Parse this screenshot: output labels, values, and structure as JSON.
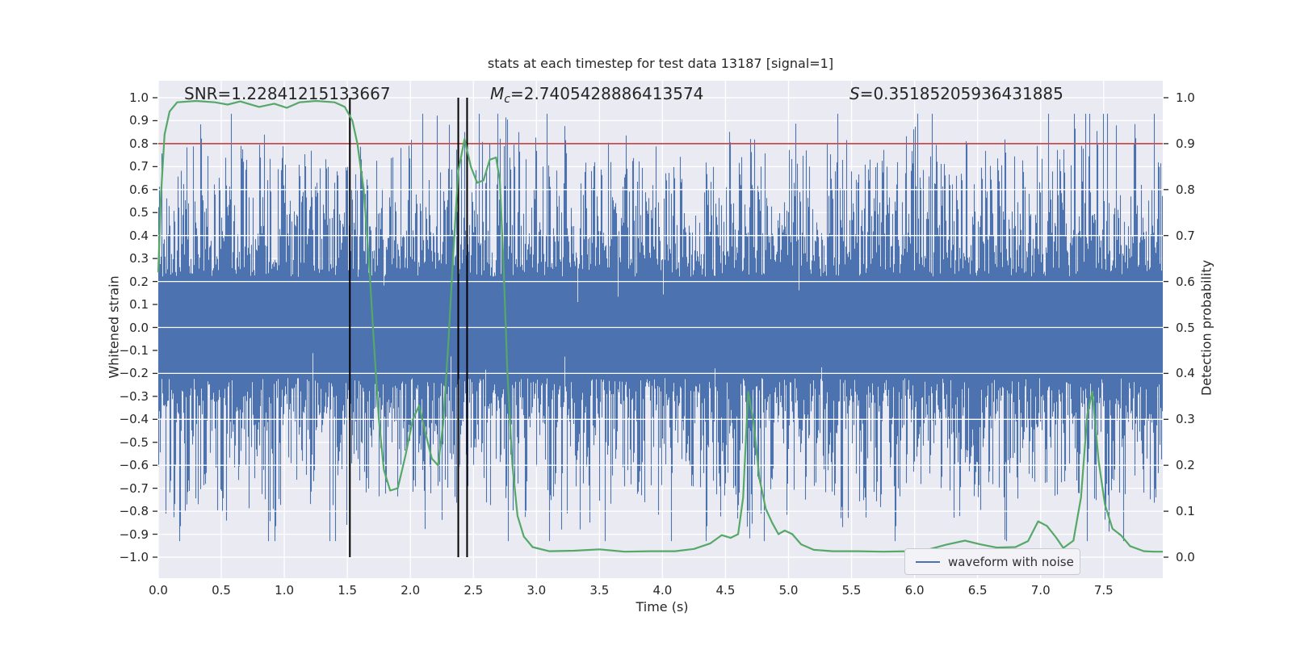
{
  "title": "stats at each timestep for test data 13187 [signal=1]",
  "annotations": {
    "snr": "SNR=1.22841215133667",
    "mc_symbol": "M",
    "mc_subscript": "c",
    "mc_rest": "=2.7405428886413574",
    "s_symbol": "S",
    "s_rest": "=0.35185205936431885"
  },
  "axes": {
    "xlabel": "Time (s)",
    "ylabel_left": "Whitened strain",
    "ylabel_right": "Detection probability",
    "x_tick_values": [
      0.0,
      0.5,
      1.0,
      1.5,
      2.0,
      2.5,
      3.0,
      3.5,
      4.0,
      4.5,
      5.0,
      5.5,
      6.0,
      6.5,
      7.0,
      7.5
    ],
    "x_tick_labels": [
      "0.0",
      "0.5",
      "1.0",
      "1.5",
      "2.0",
      "2.5",
      "3.0",
      "3.5",
      "4.0",
      "4.5",
      "5.0",
      "5.5",
      "6.0",
      "6.5",
      "7.0",
      "7.5"
    ],
    "yl_tick_values": [
      1.0,
      0.9,
      0.8,
      0.7,
      0.6,
      0.5,
      0.4,
      0.3,
      0.2,
      0.1,
      0.0,
      -0.1,
      -0.2,
      -0.3,
      -0.4,
      -0.5,
      -0.6,
      -0.7,
      -0.8,
      -0.9,
      -1.0
    ],
    "yl_tick_labels": [
      "1.0",
      "0.9",
      "0.8",
      "0.7",
      "0.6",
      "0.5",
      "0.4",
      "0.3",
      "0.2",
      "0.1",
      "0.0",
      "−0.1",
      "−0.2",
      "−0.3",
      "−0.4",
      "−0.5",
      "−0.6",
      "−0.7",
      "−0.8",
      "−0.9",
      "−1.0"
    ],
    "yr_tick_values": [
      1.0,
      0.9,
      0.8,
      0.7,
      0.6,
      0.5,
      0.4,
      0.3,
      0.2,
      0.1,
      0.0
    ],
    "yr_tick_labels": [
      "1.0",
      "0.9",
      "0.8",
      "0.7",
      "0.6",
      "0.5",
      "0.4",
      "0.3",
      "0.2",
      "0.1",
      "0.0"
    ]
  },
  "legend": {
    "label": "waveform with noise"
  },
  "colors": {
    "plot_bg": "#eaeaf2",
    "grid": "#ffffff",
    "waveform": "#4c72b0",
    "detection": "#55a868",
    "threshold": "#c44e52",
    "event_line": "#000000",
    "text": "#262626"
  },
  "chart_data": {
    "type": "line",
    "title": "stats at each timestep for test data 13187 [signal=1]",
    "xlabel": "Time (s)",
    "ylabel_left": "Whitened strain",
    "ylabel_right": "Detection probability",
    "xlim": [
      0.0,
      7.97
    ],
    "ylim_left": [
      -1.08,
      1.08
    ],
    "ylim_right": [
      -0.04,
      1.04
    ],
    "grid": "both axes, white gridlines (darkgrid style); right-axis grid drawn above waveform",
    "legend_loc": "lower right inset",
    "threshold_line": {
      "axis": "right",
      "value": 0.9
    },
    "event_vlines": {
      "x": [
        1.52,
        2.38,
        2.45
      ],
      "span_right_axis": [
        0.0,
        1.0
      ]
    },
    "series": [
      {
        "name": "waveform with noise",
        "axis": "left",
        "kind": "dense noise waveform (whitened strain), appears as solid band",
        "solid_core_halfwidth": 0.22,
        "typical_peak": 0.45,
        "max_peak": 0.93,
        "x_range": [
          0.0,
          7.97
        ]
      },
      {
        "name": "detection probability",
        "axis": "right",
        "kind": "polyline",
        "points": [
          [
            0.0,
            0.62
          ],
          [
            0.02,
            0.78
          ],
          [
            0.05,
            0.92
          ],
          [
            0.09,
            0.97
          ],
          [
            0.15,
            0.99
          ],
          [
            0.3,
            0.993
          ],
          [
            0.45,
            0.99
          ],
          [
            0.55,
            0.985
          ],
          [
            0.65,
            0.992
          ],
          [
            0.8,
            0.98
          ],
          [
            0.92,
            0.987
          ],
          [
            1.02,
            0.978
          ],
          [
            1.12,
            0.99
          ],
          [
            1.25,
            0.993
          ],
          [
            1.4,
            0.99
          ],
          [
            1.48,
            0.98
          ],
          [
            1.54,
            0.95
          ],
          [
            1.58,
            0.9
          ],
          [
            1.63,
            0.8
          ],
          [
            1.67,
            0.65
          ],
          [
            1.71,
            0.47
          ],
          [
            1.75,
            0.3
          ],
          [
            1.79,
            0.19
          ],
          [
            1.84,
            0.145
          ],
          [
            1.9,
            0.15
          ],
          [
            1.96,
            0.22
          ],
          [
            2.02,
            0.3
          ],
          [
            2.07,
            0.33
          ],
          [
            2.12,
            0.27
          ],
          [
            2.17,
            0.215
          ],
          [
            2.22,
            0.2
          ],
          [
            2.26,
            0.29
          ],
          [
            2.3,
            0.46
          ],
          [
            2.34,
            0.66
          ],
          [
            2.38,
            0.84
          ],
          [
            2.43,
            0.91
          ],
          [
            2.48,
            0.85
          ],
          [
            2.53,
            0.815
          ],
          [
            2.58,
            0.82
          ],
          [
            2.63,
            0.865
          ],
          [
            2.68,
            0.87
          ],
          [
            2.71,
            0.82
          ],
          [
            2.74,
            0.63
          ],
          [
            2.77,
            0.4
          ],
          [
            2.81,
            0.2
          ],
          [
            2.85,
            0.09
          ],
          [
            2.9,
            0.045
          ],
          [
            2.97,
            0.022
          ],
          [
            3.1,
            0.013
          ],
          [
            3.3,
            0.014
          ],
          [
            3.5,
            0.017
          ],
          [
            3.7,
            0.012
          ],
          [
            3.9,
            0.013
          ],
          [
            4.1,
            0.013
          ],
          [
            4.25,
            0.018
          ],
          [
            4.38,
            0.03
          ],
          [
            4.47,
            0.048
          ],
          [
            4.54,
            0.042
          ],
          [
            4.6,
            0.05
          ],
          [
            4.64,
            0.13
          ],
          [
            4.68,
            0.36
          ],
          [
            4.72,
            0.3
          ],
          [
            4.77,
            0.17
          ],
          [
            4.82,
            0.105
          ],
          [
            4.87,
            0.075
          ],
          [
            4.92,
            0.05
          ],
          [
            4.97,
            0.058
          ],
          [
            5.03,
            0.05
          ],
          [
            5.1,
            0.028
          ],
          [
            5.2,
            0.016
          ],
          [
            5.35,
            0.013
          ],
          [
            5.55,
            0.013
          ],
          [
            5.75,
            0.012
          ],
          [
            5.95,
            0.013
          ],
          [
            6.1,
            0.016
          ],
          [
            6.25,
            0.027
          ],
          [
            6.4,
            0.036
          ],
          [
            6.52,
            0.028
          ],
          [
            6.65,
            0.021
          ],
          [
            6.8,
            0.022
          ],
          [
            6.9,
            0.035
          ],
          [
            6.98,
            0.078
          ],
          [
            7.05,
            0.068
          ],
          [
            7.12,
            0.044
          ],
          [
            7.18,
            0.02
          ],
          [
            7.26,
            0.036
          ],
          [
            7.32,
            0.13
          ],
          [
            7.37,
            0.31
          ],
          [
            7.41,
            0.36
          ],
          [
            7.46,
            0.21
          ],
          [
            7.51,
            0.115
          ],
          [
            7.57,
            0.062
          ],
          [
            7.64,
            0.047
          ],
          [
            7.71,
            0.024
          ],
          [
            7.82,
            0.013
          ],
          [
            7.9,
            0.012
          ],
          [
            7.97,
            0.012
          ]
        ]
      }
    ],
    "annotations": [
      "SNR=1.22841215133667",
      "M_c=2.7405428886413574",
      "S=0.35185205936431885"
    ]
  }
}
